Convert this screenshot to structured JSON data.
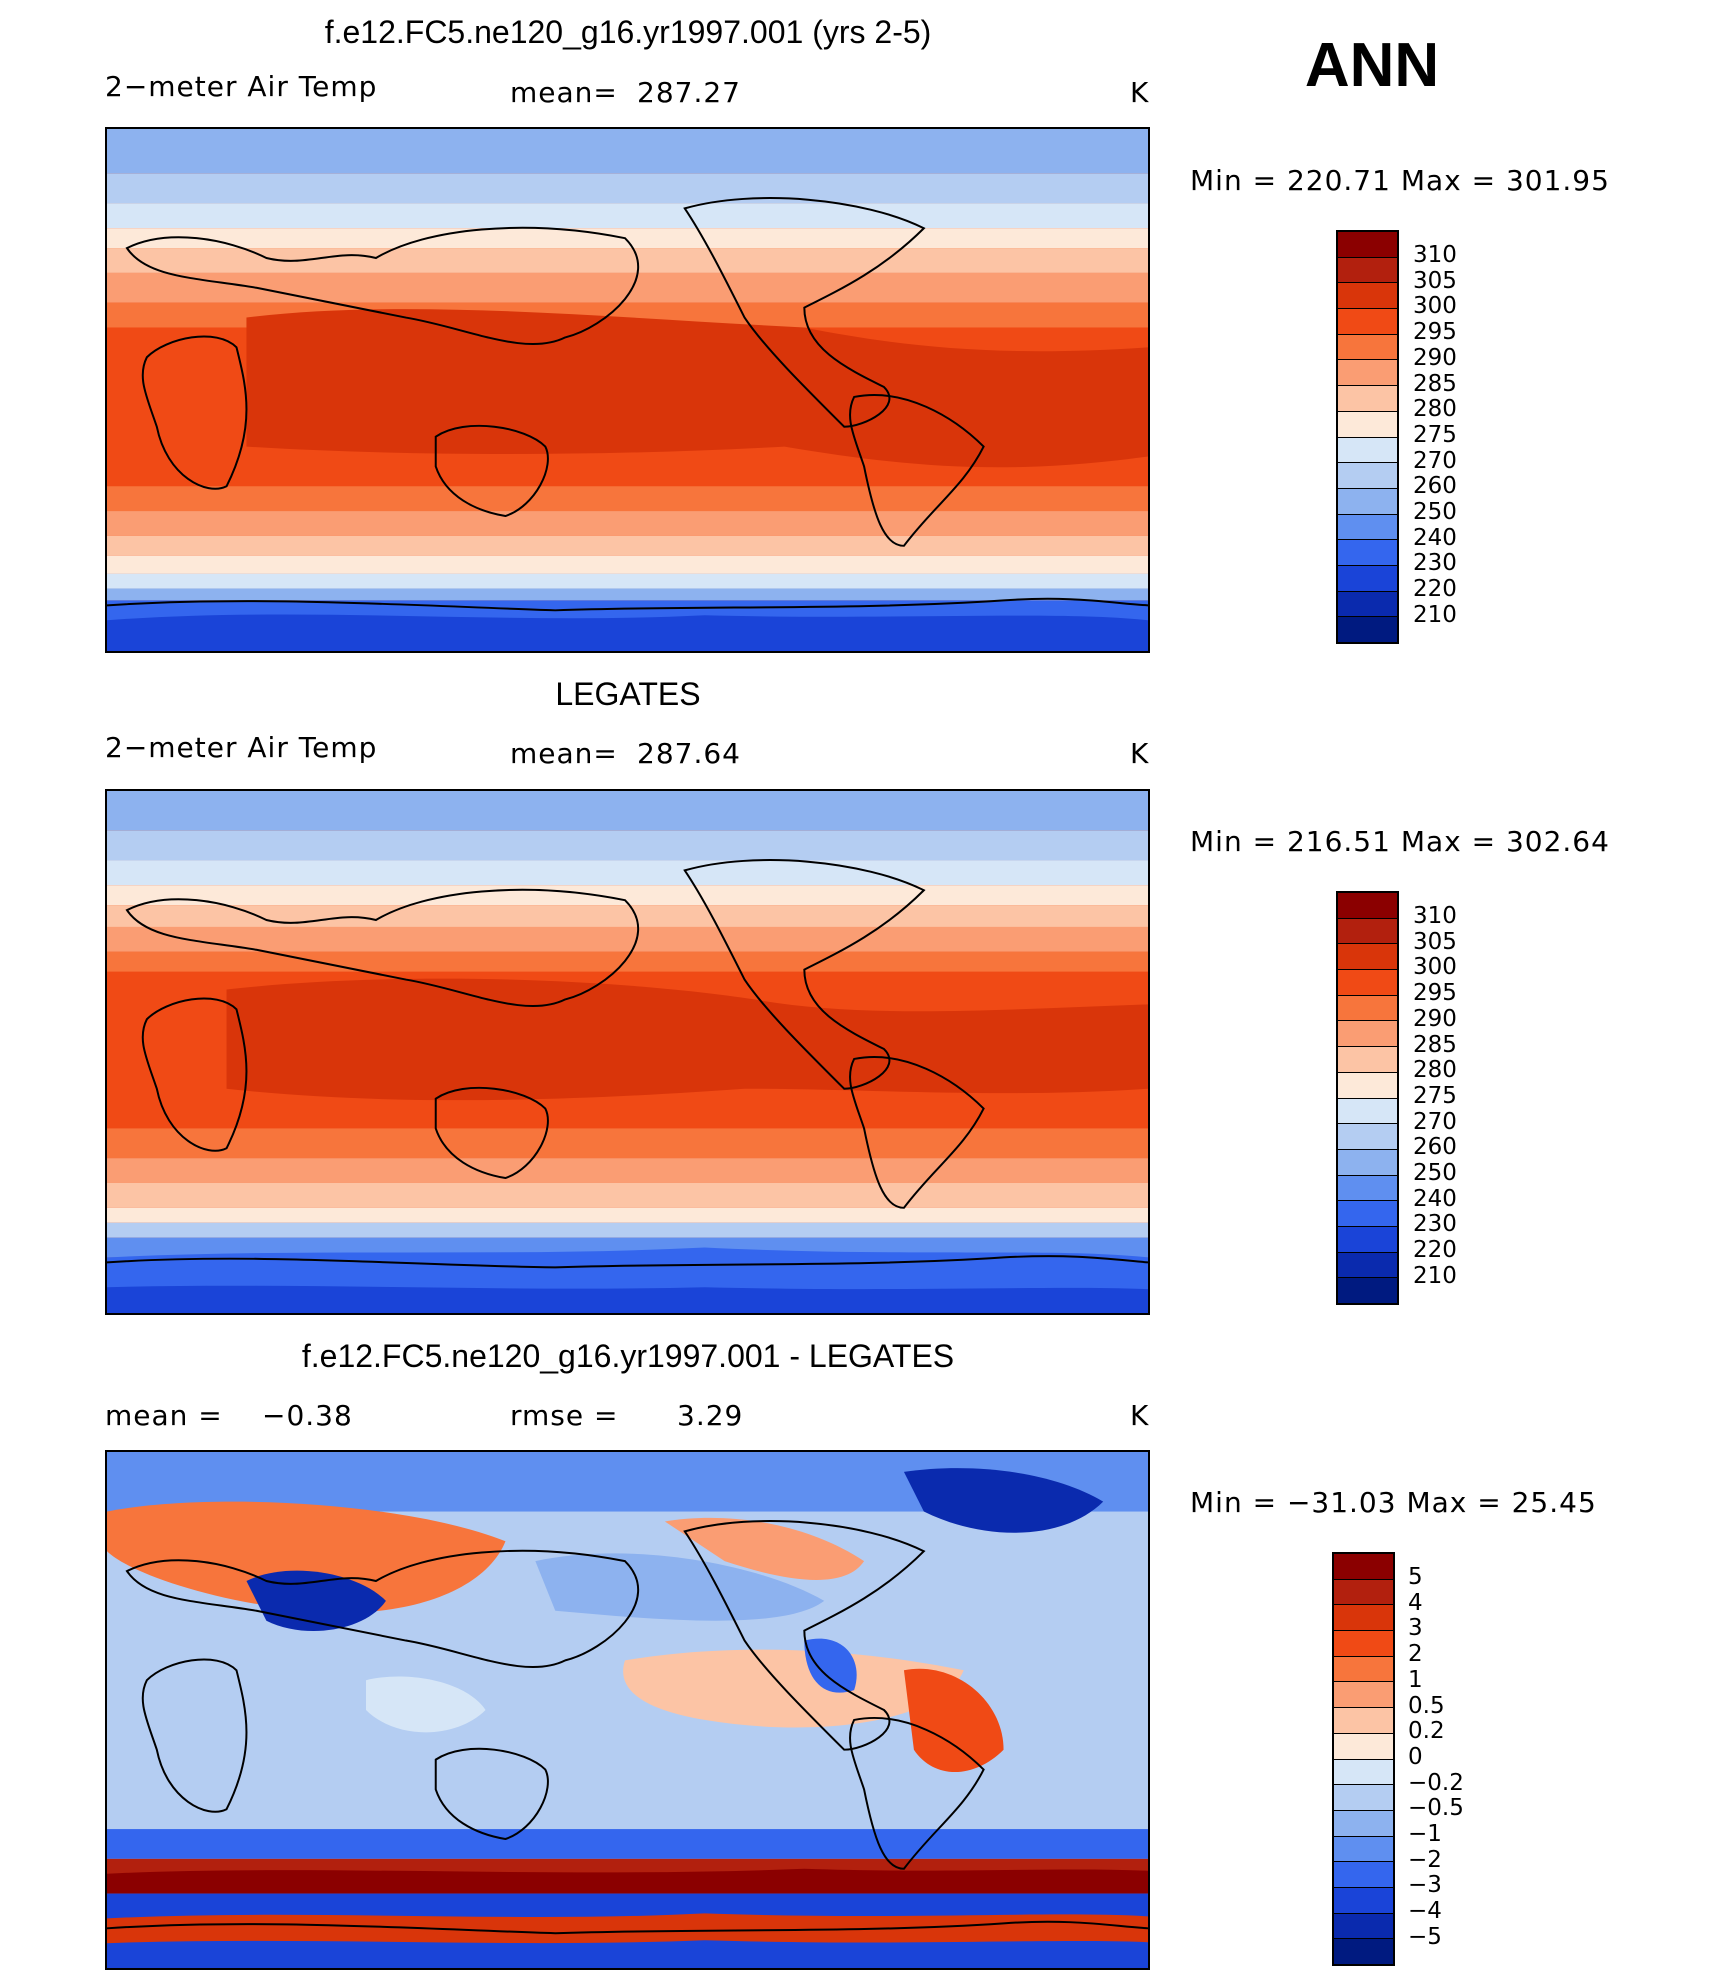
{
  "season": "ANN",
  "panels": [
    {
      "title": "f.e12.FC5.ne120_g16.yr1997.001 (yrs 2-5)",
      "left_label": "2−meter Air Temp",
      "stat_label": "mean=",
      "stat_value": "287.27",
      "units": "K",
      "minmax": "Min  =  220.71  Max  =  301.95",
      "colorbar_labels": [
        "310",
        "305",
        "300",
        "295",
        "290",
        "285",
        "280",
        "275",
        "270",
        "260",
        "250",
        "240",
        "230",
        "220",
        "210"
      ],
      "colors": [
        "#8b0000",
        "#b2200e",
        "#d9350a",
        "#f04a15",
        "#f7753c",
        "#fa9d73",
        "#fcc4a5",
        "#fde9d9",
        "#d6e6f7",
        "#b4cdf2",
        "#8db2ef",
        "#5f8ff0",
        "#3466ee",
        "#1a44d8",
        "#0a2aae",
        "#001a80"
      ]
    },
    {
      "title": "LEGATES",
      "left_label": "2−meter Air Temp",
      "stat_label": "mean=",
      "stat_value": "287.64",
      "units": "K",
      "minmax": "Min  =  216.51  Max  =  302.64",
      "colorbar_labels": [
        "310",
        "305",
        "300",
        "295",
        "290",
        "285",
        "280",
        "275",
        "270",
        "260",
        "250",
        "240",
        "230",
        "220",
        "210"
      ],
      "colors": [
        "#8b0000",
        "#b2200e",
        "#d9350a",
        "#f04a15",
        "#f7753c",
        "#fa9d73",
        "#fcc4a5",
        "#fde9d9",
        "#d6e6f7",
        "#b4cdf2",
        "#8db2ef",
        "#5f8ff0",
        "#3466ee",
        "#1a44d8",
        "#0a2aae",
        "#001a80"
      ]
    },
    {
      "title": "f.e12.FC5.ne120_g16.yr1997.001 - LEGATES",
      "left_label": "mean =",
      "left_value": "−0.38",
      "stat_label": "rmse =",
      "stat_value": "3.29",
      "units": "K",
      "minmax": "Min  =  −31.03  Max  =    25.45",
      "colorbar_labels": [
        "5",
        "4",
        "3",
        "2",
        "1",
        "0.5",
        "0.2",
        "0",
        "−0.2",
        "−0.5",
        "−1",
        "−2",
        "−3",
        "−4",
        "−5"
      ],
      "colors": [
        "#8b0000",
        "#b2200e",
        "#d9350a",
        "#f04a15",
        "#f7753c",
        "#fa9d73",
        "#fcc4a5",
        "#fde9d9",
        "#d6e6f7",
        "#b4cdf2",
        "#8db2ef",
        "#5f8ff0",
        "#3466ee",
        "#1a44d8",
        "#0a2aae",
        "#001a80"
      ]
    }
  ]
}
